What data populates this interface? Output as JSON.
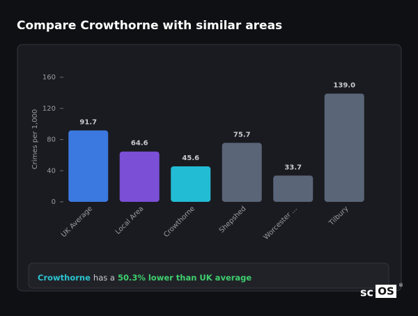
{
  "title": "Compare Crowthorne with similar areas",
  "chart_data": {
    "type": "bar",
    "y_label": "Crimes per 1,000",
    "categories": [
      "UK Average",
      "Local Area",
      "Crowthorne",
      "Shepshed",
      "Worcester ...",
      "Tilbury"
    ],
    "values": [
      91.7,
      64.6,
      45.6,
      75.7,
      33.7,
      139
    ],
    "value_labels": [
      "91.7",
      "64.6",
      "45.6",
      "75.7",
      "33.7",
      "139.0"
    ],
    "colors": [
      "#3b78e0",
      "#7b4fd6",
      "#22bcd4",
      "#5a6578",
      "#5a6578",
      "#5a6578"
    ],
    "ylim": [
      0,
      160
    ],
    "yticks": [
      0,
      40,
      80,
      120,
      160
    ]
  },
  "summary": {
    "area": "Crowthorne",
    "text": "has a",
    "highlight": "50.3% lower than UK average"
  },
  "logo": {
    "left": "sc",
    "box": "OS",
    "mark": "®"
  }
}
